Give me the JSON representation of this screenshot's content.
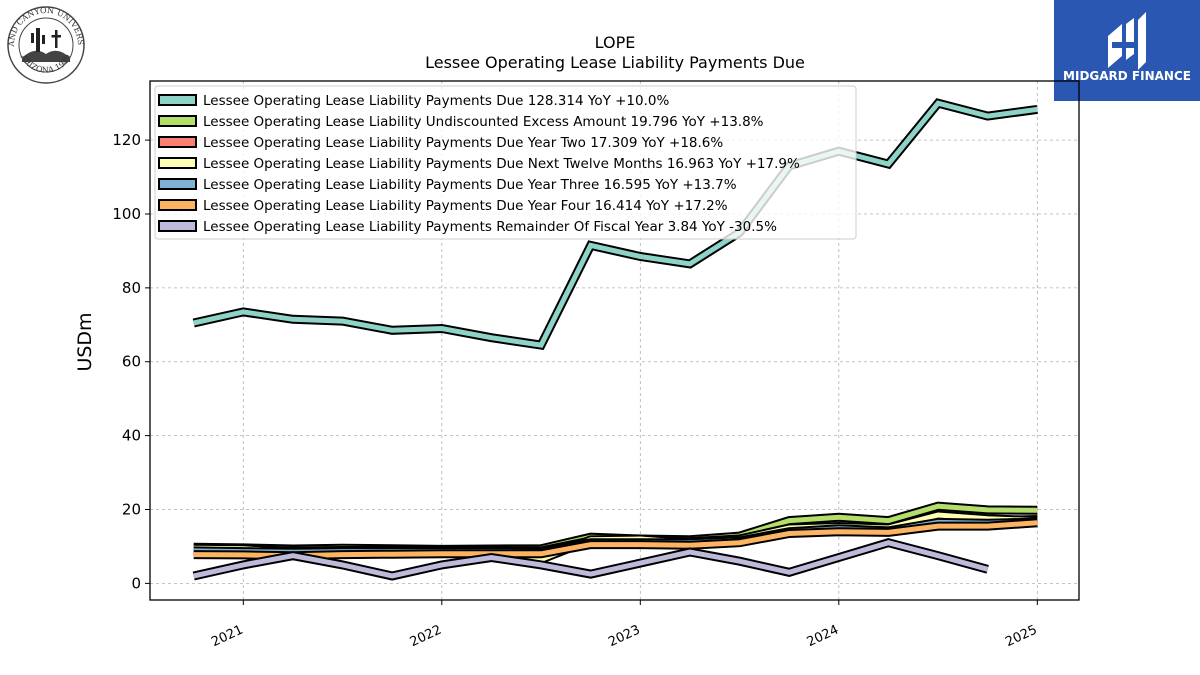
{
  "logo_left": {
    "icon": "university-seal-icon",
    "text_top": "GRAND CANYON UNIVERSITY",
    "text_bottom": "ARIZONA 1949"
  },
  "brand": {
    "icon": "midgard-logo-icon",
    "name": "MIDGARD FINANCE",
    "color": "#2a57b2"
  },
  "chart_data": {
    "type": "line",
    "title": "LOPE",
    "subtitle": "Lessee Operating Lease Liability Payments Due",
    "ylabel": "USDm",
    "xlabel": "",
    "ylim": [
      -4.5,
      136
    ],
    "xlim": [
      2020.53,
      2025.21
    ],
    "yticks": [
      0,
      20,
      40,
      60,
      80,
      100,
      120
    ],
    "xticks": [
      2021,
      2022,
      2023,
      2024,
      2025
    ],
    "xtick_labels": [
      "2021",
      "2022",
      "2023",
      "2024",
      "2025"
    ],
    "grid": true,
    "legend_position": "top-left",
    "series": [
      {
        "name": "Lessee Operating Lease Liability Payments Due",
        "legend": "Lessee Operating Lease Liability Payments Due  128.314 YoY +10.0%",
        "color": "#8dd3c7",
        "x": [
          2020.75,
          2021.0,
          2021.25,
          2021.5,
          2021.75,
          2022.0,
          2022.25,
          2022.5,
          2022.75,
          2023.0,
          2023.25,
          2023.5,
          2023.75,
          2024.0,
          2024.25,
          2024.5,
          2024.75,
          2025.0
        ],
        "y": [
          70.5,
          73.5,
          71.5,
          71.0,
          68.5,
          69.0,
          66.5,
          64.5,
          91.5,
          88.5,
          86.5,
          95.0,
          113.0,
          117.0,
          113.5,
          130.0,
          126.5,
          128.3
        ]
      },
      {
        "name": "Lessee Operating Lease Liability Undiscounted Excess Amount",
        "legend": "Lessee Operating Lease Liability Undiscounted Excess Amount  19.796 YoY +13.8%",
        "color": "#b3de69",
        "x": [
          2020.75,
          2021.0,
          2021.25,
          2021.5,
          2021.75,
          2022.0,
          2022.25,
          2022.5,
          2022.75,
          2023.0,
          2023.25,
          2023.5,
          2023.75,
          2024.0,
          2024.25,
          2024.5,
          2024.75,
          2025.0
        ],
        "y": [
          9.8,
          9.6,
          9.3,
          9.5,
          9.4,
          9.2,
          9.3,
          9.4,
          12.5,
          12.0,
          11.8,
          12.8,
          17.0,
          17.9,
          17.0,
          20.9,
          19.9,
          19.8
        ]
      },
      {
        "name": "Lessee Operating Lease Liability Payments Due Year Two",
        "legend": "Lessee Operating Lease Liability Payments Due Year Two  17.309 YoY +18.6%",
        "color": "#fb8072",
        "x": [
          2020.75,
          2021.0,
          2021.25,
          2021.5,
          2021.75,
          2022.0,
          2022.25,
          2022.5,
          2022.75,
          2023.0,
          2023.25,
          2023.5,
          2023.75,
          2024.0,
          2024.25,
          2024.5,
          2024.75,
          2025.0
        ],
        "y": [
          9.2,
          9.0,
          8.8,
          8.9,
          8.9,
          8.9,
          8.9,
          8.8,
          11.5,
          11.4,
          11.3,
          12.0,
          14.5,
          15.2,
          14.6,
          17.2,
          17.0,
          17.3
        ]
      },
      {
        "name": "Lessee Operating Lease Liability Payments Due Next Twelve Months",
        "legend": "Lessee Operating Lease Liability Payments Due Next Twelve Months  16.963 YoY +17.9%",
        "color": "#ffffb3",
        "x": [
          2020.75,
          2021.0,
          2021.25,
          2021.5,
          2021.75,
          2022.0,
          2022.25,
          2022.5,
          2022.75,
          2023.0,
          2023.25,
          2023.5,
          2023.75,
          2024.0,
          2024.25,
          2024.5,
          2024.75,
          2025.0
        ],
        "y": [
          9.5,
          9.4,
          8.5,
          8.8,
          8.8,
          8.9,
          8.9,
          6.5,
          11.8,
          12.0,
          11.0,
          12.0,
          15.0,
          15.4,
          15.0,
          18.5,
          17.5,
          17.0
        ]
      },
      {
        "name": "Lessee Operating Lease Liability Payments Due Year Three",
        "legend": "Lessee Operating Lease Liability Payments Due Year Three  16.595 YoY +13.7%",
        "color": "#80b1d3",
        "x": [
          2020.75,
          2021.0,
          2021.25,
          2021.5,
          2021.75,
          2022.0,
          2022.25,
          2022.5,
          2022.75,
          2023.0,
          2023.25,
          2023.5,
          2023.75,
          2024.0,
          2024.25,
          2024.5,
          2024.75,
          2025.0
        ],
        "y": [
          8.8,
          8.6,
          8.4,
          8.6,
          8.6,
          8.6,
          8.6,
          8.5,
          11.0,
          11.0,
          11.0,
          11.5,
          14.0,
          14.8,
          14.2,
          16.5,
          16.3,
          16.6
        ]
      },
      {
        "name": "Lessee Operating Lease Liability Payments Due Year Four",
        "legend": "Lessee Operating Lease Liability Payments Due Year Four  16.414 YoY +17.2%",
        "color": "#fdb462",
        "x": [
          2020.75,
          2021.0,
          2021.25,
          2021.5,
          2021.75,
          2022.0,
          2022.25,
          2022.5,
          2022.75,
          2023.0,
          2023.25,
          2023.5,
          2023.75,
          2024.0,
          2024.25,
          2024.5,
          2024.75,
          2025.0
        ],
        "y": [
          7.8,
          7.7,
          7.5,
          7.8,
          7.9,
          8.0,
          8.0,
          8.0,
          10.5,
          10.5,
          10.3,
          11.0,
          13.5,
          14.0,
          13.8,
          15.5,
          15.5,
          16.4
        ]
      },
      {
        "name": "Lessee Operating Lease Liability Payments Remainder Of Fiscal Year",
        "legend": "Lessee Operating Lease Liability Payments Remainder Of Fiscal Year  3.84 YoY -30.5%",
        "color": "#bebada",
        "x": [
          2020.75,
          2021.0,
          2021.25,
          2021.5,
          2021.75,
          2022.0,
          2022.25,
          2022.5,
          2022.75,
          2023.0,
          2023.25,
          2023.5,
          2023.75,
          2024.0,
          2024.25,
          2024.5,
          2024.75
        ],
        "y": [
          2.0,
          5.0,
          7.5,
          5.0,
          2.0,
          5.0,
          7.0,
          5.0,
          2.5,
          5.5,
          8.5,
          6.0,
          3.0,
          7.0,
          11.0,
          7.5,
          3.8
        ]
      }
    ]
  }
}
